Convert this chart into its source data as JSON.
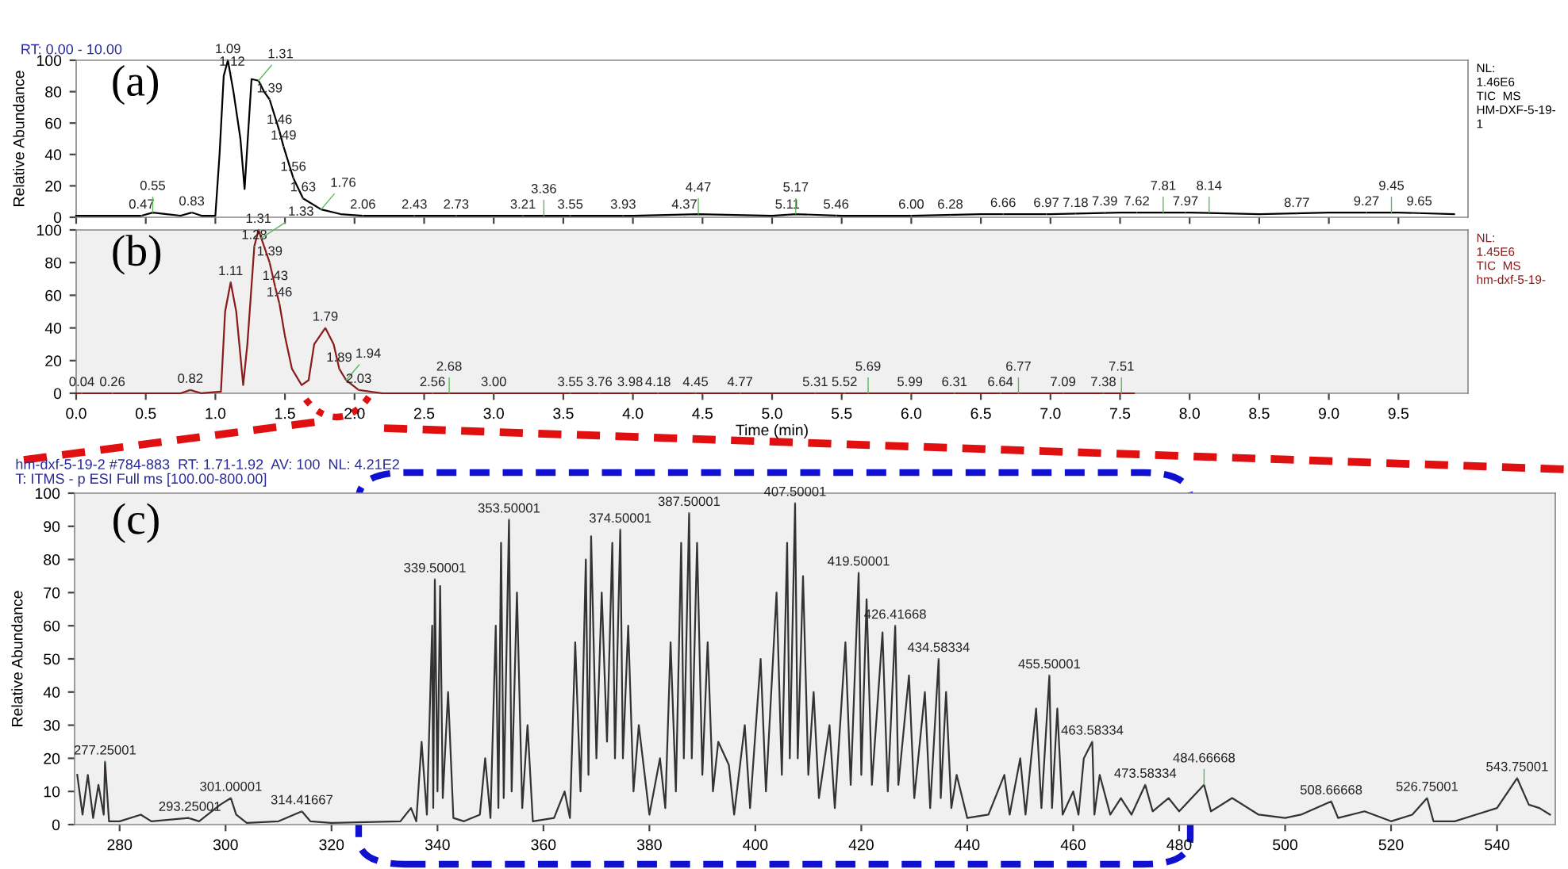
{
  "chart_data": [
    {
      "type": "line",
      "title": "(a)",
      "subtitle": "RT: 0.00 - 10.00",
      "ylabel": "Relative Abundance",
      "color": "#000000",
      "tick_labels": "y",
      "grid": false,
      "marker": "none",
      "line_style": "solid",
      "legend": false,
      "xlim": [
        0,
        10
      ],
      "ylim": [
        0,
        100
      ],
      "yticks": [
        0,
        20,
        40,
        60,
        80,
        100
      ],
      "xticks": [
        0,
        0.5,
        1,
        1.5,
        2,
        2.5,
        3,
        3.5,
        4,
        4.5,
        5,
        5.5,
        6,
        6.5,
        7,
        7.5,
        8,
        8.5,
        9,
        9.5
      ],
      "x": [
        0,
        0.3,
        0.47,
        0.55,
        0.65,
        0.75,
        0.83,
        0.9,
        1.0,
        1.03,
        1.06,
        1.09,
        1.13,
        1.18,
        1.21,
        1.24,
        1.26,
        1.31,
        1.35,
        1.39,
        1.46,
        1.49,
        1.56,
        1.63,
        1.76,
        1.9,
        2.06,
        2.5,
        3.0,
        3.5,
        4.0,
        4.47,
        5.0,
        5.17,
        5.5,
        6.0,
        6.5,
        7.0,
        7.5,
        8.0,
        8.5,
        9.0,
        9.5,
        9.9
      ],
      "values": [
        1,
        1,
        1,
        3,
        2,
        1,
        3,
        1,
        1,
        40,
        90,
        100,
        80,
        50,
        18,
        60,
        88,
        87,
        80,
        75,
        55,
        45,
        25,
        12,
        5,
        2,
        1,
        1,
        1,
        1,
        1,
        2,
        1,
        2,
        1,
        1,
        2,
        2,
        3,
        3,
        2,
        3,
        3,
        2
      ],
      "annotations": [
        {
          "text": "1.09",
          "x": 1.09,
          "y": 100
        },
        {
          "text": "1.12",
          "x": 1.12,
          "y": 92
        },
        {
          "text": "1.31",
          "x": 1.31,
          "y": 87
        },
        {
          "text": "1.39",
          "x": 1.39,
          "y": 75
        },
        {
          "text": "1.46",
          "x": 1.46,
          "y": 55
        },
        {
          "text": "1.49",
          "x": 1.49,
          "y": 45
        },
        {
          "text": "1.56",
          "x": 1.56,
          "y": 25
        },
        {
          "text": "1.63",
          "x": 1.63,
          "y": 12
        },
        {
          "text": "1.76",
          "x": 1.76,
          "y": 5
        },
        {
          "text": "0.47",
          "x": 0.47,
          "y": 1
        },
        {
          "text": "0.55",
          "x": 0.55,
          "y": 3
        },
        {
          "text": "0.83",
          "x": 0.83,
          "y": 3
        },
        {
          "text": "2.06",
          "x": 2.06,
          "y": 1
        },
        {
          "text": "2.43",
          "x": 2.43,
          "y": 1
        },
        {
          "text": "2.73",
          "x": 2.73,
          "y": 1
        },
        {
          "text": "3.21",
          "x": 3.21,
          "y": 1
        },
        {
          "text": "3.36",
          "x": 3.36,
          "y": 1
        },
        {
          "text": "3.55",
          "x": 3.55,
          "y": 1
        },
        {
          "text": "3.93",
          "x": 3.93,
          "y": 1
        },
        {
          "text": "4.37",
          "x": 4.37,
          "y": 1
        },
        {
          "text": "4.47",
          "x": 4.47,
          "y": 2
        },
        {
          "text": "5.11",
          "x": 5.11,
          "y": 1
        },
        {
          "text": "5.17",
          "x": 5.17,
          "y": 2
        },
        {
          "text": "5.46",
          "x": 5.46,
          "y": 1
        },
        {
          "text": "6.00",
          "x": 6.0,
          "y": 1
        },
        {
          "text": "6.28",
          "x": 6.28,
          "y": 1
        },
        {
          "text": "6.66",
          "x": 6.66,
          "y": 2
        },
        {
          "text": "6.97",
          "x": 6.97,
          "y": 2
        },
        {
          "text": "7.18",
          "x": 7.18,
          "y": 2
        },
        {
          "text": "7.39",
          "x": 7.39,
          "y": 3
        },
        {
          "text": "7.62",
          "x": 7.62,
          "y": 3
        },
        {
          "text": "7.81",
          "x": 7.81,
          "y": 3
        },
        {
          "text": "7.97",
          "x": 7.97,
          "y": 3
        },
        {
          "text": "8.14",
          "x": 8.14,
          "y": 3
        },
        {
          "text": "8.77",
          "x": 8.77,
          "y": 2
        },
        {
          "text": "9.27",
          "x": 9.27,
          "y": 3
        },
        {
          "text": "9.45",
          "x": 9.45,
          "y": 3
        },
        {
          "text": "9.65",
          "x": 9.65,
          "y": 3
        },
        "NL:\n1.46E6\nTIC  MS\nHM-DXF-5-19-\n1"
      ]
    },
    {
      "type": "line",
      "title": "(b)",
      "xlabel": "Time (min)",
      "color": "#8b1a1a",
      "grid": false,
      "marker": "none",
      "line_style": "solid",
      "legend": false,
      "xlim": [
        0,
        10
      ],
      "ylim": [
        0,
        100
      ],
      "yticks": [
        0,
        20,
        40,
        60,
        80,
        100
      ],
      "xticks": [
        {
          "value": 0,
          "label": "0.0"
        },
        0.5,
        {
          "value": 1,
          "label": "1.0"
        },
        1.5,
        {
          "value": 2,
          "label": "2.0"
        },
        2.5,
        {
          "value": 3,
          "label": "3.0"
        },
        3.5,
        {
          "value": 4,
          "label": "4.0"
        },
        4.5,
        {
          "value": 5,
          "label": "5.0"
        },
        5.5,
        {
          "value": 6,
          "label": "6.0"
        },
        6.5,
        {
          "value": 7,
          "label": "7.0"
        },
        7.5,
        {
          "value": 8,
          "label": "8.0"
        },
        8.5,
        {
          "value": 9,
          "label": "9.0"
        },
        9.5
      ],
      "x": [
        0,
        0.5,
        0.75,
        0.82,
        0.9,
        1.04,
        1.07,
        1.11,
        1.15,
        1.2,
        1.23,
        1.28,
        1.31,
        1.33,
        1.39,
        1.43,
        1.46,
        1.5,
        1.55,
        1.62,
        1.67,
        1.71,
        1.79,
        1.85,
        1.89,
        1.94,
        2.03,
        2.2,
        3.0,
        4.0,
        5.0,
        6.0,
        7.0,
        7.6
      ],
      "values": [
        0,
        0,
        0,
        2,
        0,
        1,
        50,
        68,
        50,
        5,
        30,
        90,
        100,
        95,
        80,
        65,
        55,
        35,
        15,
        5,
        8,
        30,
        40,
        30,
        15,
        8,
        2,
        0,
        0,
        0,
        0,
        0,
        0,
        0
      ],
      "annotations": [
        {
          "text": "1.11",
          "x": 1.11,
          "y": 68
        },
        {
          "text": "1.28",
          "x": 1.28,
          "y": 90
        },
        {
          "text": "1.31",
          "x": 1.31,
          "y": 100
        },
        {
          "text": "1.33",
          "x": 1.33,
          "y": 95
        },
        {
          "text": "1.39",
          "x": 1.39,
          "y": 80
        },
        {
          "text": "1.43",
          "x": 1.43,
          "y": 65
        },
        {
          "text": "1.46",
          "x": 1.46,
          "y": 55
        },
        {
          "text": "1.79",
          "x": 1.79,
          "y": 40
        },
        {
          "text": "1.89",
          "x": 1.89,
          "y": 15
        },
        {
          "text": "1.94",
          "x": 1.94,
          "y": 8
        },
        {
          "text": "0.04",
          "x": 0.04,
          "y": 0
        },
        {
          "text": "0.26",
          "x": 0.26,
          "y": 0
        },
        {
          "text": "0.82",
          "x": 0.82,
          "y": 2
        },
        {
          "text": "2.03",
          "x": 2.03,
          "y": 2
        },
        {
          "text": "2.56",
          "x": 2.56,
          "y": 0
        },
        {
          "text": "2.68",
          "x": 2.68,
          "y": 0
        },
        {
          "text": "3.00",
          "x": 3.0,
          "y": 0
        },
        {
          "text": "3.55",
          "x": 3.55,
          "y": 0
        },
        {
          "text": "3.76",
          "x": 3.76,
          "y": 0
        },
        {
          "text": "3.98",
          "x": 3.98,
          "y": 0
        },
        {
          "text": "4.18",
          "x": 4.18,
          "y": 0
        },
        {
          "text": "4.45",
          "x": 4.45,
          "y": 0
        },
        {
          "text": "4.77",
          "x": 4.77,
          "y": 0
        },
        {
          "text": "5.31",
          "x": 5.31,
          "y": 0
        },
        {
          "text": "5.52",
          "x": 5.52,
          "y": 0
        },
        {
          "text": "5.69",
          "x": 5.69,
          "y": 0
        },
        {
          "text": "5.99",
          "x": 5.99,
          "y": 0
        },
        {
          "text": "6.31",
          "x": 6.31,
          "y": 0
        },
        {
          "text": "6.64",
          "x": 6.64,
          "y": 0
        },
        {
          "text": "6.77",
          "x": 6.77,
          "y": 0
        },
        {
          "text": "7.09",
          "x": 7.09,
          "y": 0
        },
        {
          "text": "7.38",
          "x": 7.38,
          "y": 0
        },
        {
          "text": "7.51",
          "x": 7.51,
          "y": 0
        },
        "NL:\n1.45E6\nTIC  MS\nhm-dxf-5-19-"
      ]
    },
    {
      "type": "line",
      "title": "(c)",
      "subtitle": "hm-dxf-5-19-2 #784-883  RT: 1.71-1.92  AV: 100  NL: 4.21E2\nT: ITMS - p ESI Full ms [100.00-800.00]",
      "ylabel": "Relative Abundance",
      "color": "#333333",
      "grid": false,
      "marker": "none",
      "line_style": "solid",
      "legend": false,
      "xlim": [
        271.5,
        551
      ],
      "ylim": [
        0,
        100
      ],
      "yticks": [
        0,
        10,
        20,
        30,
        40,
        50,
        60,
        70,
        80,
        90,
        100
      ],
      "xticks": [
        280,
        300,
        320,
        340,
        360,
        380,
        400,
        420,
        440,
        460,
        480,
        500,
        520,
        540
      ],
      "x": [
        272,
        273,
        274,
        275,
        276,
        277,
        277.25,
        278,
        280,
        284,
        286,
        293,
        295,
        299,
        301,
        302,
        304,
        310,
        314.4,
        316,
        320,
        333,
        335,
        336,
        337,
        338,
        339,
        339.2,
        339.5,
        340,
        340.5,
        341,
        342,
        343,
        345,
        348,
        349,
        350,
        351,
        351.5,
        352,
        352.5,
        353.5,
        354,
        355,
        356,
        357,
        358,
        362,
        364,
        365,
        366,
        367,
        368,
        368.5,
        369,
        370,
        371,
        372,
        373,
        373.5,
        374.5,
        375,
        376,
        377,
        378,
        380,
        382,
        383,
        384,
        385,
        386,
        386.5,
        387.5,
        388,
        389,
        390,
        391,
        392,
        393,
        395,
        396,
        398,
        399,
        401,
        402,
        404,
        405,
        406,
        406.5,
        407.5,
        408,
        409,
        410,
        411,
        412,
        414,
        415,
        417,
        418,
        419.5,
        420,
        421,
        422,
        424,
        425,
        426.4,
        427,
        429,
        430,
        432,
        433,
        434.6,
        435,
        436,
        437,
        438,
        440,
        444,
        447,
        448,
        450,
        451,
        453,
        454,
        455.5,
        456,
        457,
        458,
        460,
        461,
        462,
        463.6,
        464,
        465,
        467,
        469,
        471,
        473.6,
        475,
        478,
        480,
        484.7,
        486,
        490,
        495,
        500,
        503,
        508.7,
        510,
        515,
        520,
        524,
        526.8,
        528,
        532,
        536,
        540,
        543.8,
        546,
        548,
        550
      ],
      "values": [
        15,
        3,
        15,
        2,
        12,
        3,
        19,
        1,
        1,
        3,
        1,
        2,
        1,
        6,
        8,
        3,
        0.5,
        1,
        4,
        1,
        0.5,
        1,
        5,
        1,
        25,
        3,
        60,
        5,
        74,
        10,
        72,
        8,
        40,
        2,
        1,
        3,
        20,
        2,
        60,
        5,
        85,
        8,
        92,
        10,
        70,
        5,
        30,
        1,
        2,
        10,
        2,
        55,
        10,
        80,
        15,
        87,
        20,
        70,
        25,
        85,
        20,
        89,
        20,
        60,
        10,
        30,
        3,
        20,
        5,
        55,
        10,
        85,
        20,
        94,
        20,
        85,
        15,
        55,
        10,
        25,
        18,
        3,
        30,
        5,
        50,
        10,
        70,
        15,
        85,
        20,
        97,
        20,
        75,
        15,
        40,
        8,
        30,
        5,
        55,
        12,
        76,
        15,
        68,
        12,
        58,
        10,
        60,
        12,
        45,
        8,
        40,
        5,
        50,
        8,
        40,
        5,
        15,
        2,
        3,
        15,
        3,
        20,
        3,
        35,
        5,
        45,
        5,
        35,
        3,
        10,
        3,
        20,
        25,
        3,
        15,
        3,
        8,
        3,
        12,
        4,
        8,
        4,
        12,
        4,
        8,
        3,
        2,
        3,
        7,
        2,
        4,
        1,
        3,
        8,
        1,
        1,
        3,
        5,
        14,
        6,
        5,
        3
      ],
      "annotations": [
        {
          "text": "277.25001",
          "x": 277.25,
          "y": 19
        },
        {
          "text": "293.25001",
          "x": 293.25,
          "y": 2
        },
        {
          "text": "301.00001",
          "x": 301.0,
          "y": 8
        },
        {
          "text": "314.41667",
          "x": 314.4,
          "y": 4
        },
        {
          "text": "339.50001",
          "x": 339.5,
          "y": 74
        },
        {
          "text": "353.50001",
          "x": 353.5,
          "y": 92
        },
        {
          "text": "374.50001",
          "x": 374.5,
          "y": 89
        },
        {
          "text": "387.50001",
          "x": 387.5,
          "y": 94
        },
        {
          "text": "407.50001",
          "x": 407.5,
          "y": 97
        },
        {
          "text": "419.50001",
          "x": 419.5,
          "y": 76
        },
        {
          "text": "426.41668",
          "x": 426.4,
          "y": 60
        },
        {
          "text": "434.58334",
          "x": 434.6,
          "y": 50
        },
        {
          "text": "455.50001",
          "x": 455.5,
          "y": 45
        },
        {
          "text": "463.58334",
          "x": 463.6,
          "y": 25
        },
        {
          "text": "473.58334",
          "x": 473.6,
          "y": 12
        },
        {
          "text": "484.66668",
          "x": 484.7,
          "y": 12
        },
        {
          "text": "508.66668",
          "x": 508.7,
          "y": 7
        },
        {
          "text": "526.75001",
          "x": 526.8,
          "y": 8
        },
        {
          "text": "543.75001",
          "x": 543.8,
          "y": 14
        }
      ]
    }
  ]
}
